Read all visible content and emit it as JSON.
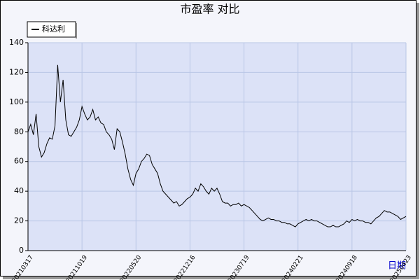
{
  "chart_data": {
    "type": "line",
    "title": "市盈率 对比",
    "x_label": "日期",
    "categories": [
      "20210317",
      null,
      null,
      null,
      null,
      null,
      null,
      null,
      null,
      null,
      null,
      null,
      null,
      null,
      null,
      null,
      null,
      null,
      null,
      null,
      "20211019",
      null,
      null,
      null,
      null,
      null,
      null,
      null,
      null,
      null,
      null,
      null,
      null,
      null,
      null,
      null,
      null,
      null,
      null,
      null,
      "20220520",
      null,
      null,
      null,
      null,
      null,
      null,
      null,
      null,
      null,
      null,
      null,
      null,
      null,
      null,
      null,
      null,
      null,
      null,
      null,
      "20221216",
      null,
      null,
      null,
      null,
      null,
      null,
      null,
      null,
      null,
      null,
      null,
      null,
      null,
      null,
      null,
      null,
      null,
      null,
      null,
      "20230719",
      null,
      null,
      null,
      null,
      null,
      null,
      null,
      null,
      null,
      null,
      null,
      null,
      null,
      null,
      null,
      null,
      null,
      null,
      null,
      "20240221",
      null,
      null,
      null,
      null,
      null,
      null,
      null,
      null,
      null,
      null,
      null,
      null,
      null,
      null,
      null,
      null,
      null,
      null,
      null,
      "20240918",
      null,
      null,
      null,
      null,
      null,
      null,
      null,
      null,
      null,
      null,
      null,
      null,
      null,
      null,
      null,
      null,
      null,
      null,
      null,
      "20250423"
    ],
    "series": [
      {
        "name": "科达利",
        "color": "#000000",
        "values": [
          80,
          85,
          78,
          92,
          70,
          63,
          66,
          72,
          76,
          75,
          84,
          125,
          100,
          115,
          88,
          78,
          77,
          80,
          83,
          88,
          97,
          92,
          88,
          90,
          95,
          88,
          90,
          86,
          85,
          80,
          78,
          75,
          68,
          82,
          80,
          73,
          65,
          55,
          48,
          44,
          52,
          55,
          60,
          62,
          65,
          64,
          58,
          55,
          52,
          45,
          40,
          38,
          36,
          34,
          32,
          33,
          30,
          31,
          33,
          35,
          36,
          38,
          42,
          40,
          45,
          43,
          40,
          38,
          42,
          40,
          42,
          38,
          33,
          32,
          32,
          30,
          31,
          31,
          32,
          30,
          31,
          30,
          29,
          27,
          25,
          23,
          21,
          20,
          21,
          22,
          21,
          21,
          20,
          20,
          19,
          19,
          18,
          18,
          17,
          16,
          18,
          19,
          20,
          21,
          20,
          21,
          20,
          20,
          19,
          18,
          17,
          16,
          16,
          17,
          16,
          16,
          17,
          18,
          20,
          19,
          21,
          20,
          21,
          20,
          20,
          19,
          19,
          18,
          20,
          22,
          23,
          25,
          27,
          26,
          26,
          25,
          24,
          23,
          21,
          22,
          23
        ]
      }
    ],
    "ylim": [
      0,
      140
    ],
    "yticks": [
      0,
      20,
      40,
      60,
      80,
      100,
      120,
      140
    ],
    "grid": true,
    "legend": "top-left"
  }
}
